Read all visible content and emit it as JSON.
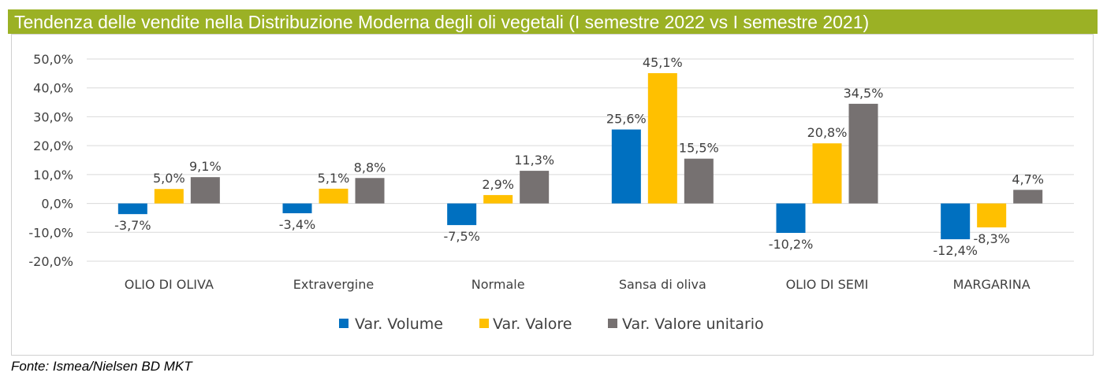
{
  "chart_data": {
    "type": "bar",
    "title": "Tendenza delle vendite nella Distribuzione Moderna degli oli vegetali (I semestre 2022 vs I semestre 2021)",
    "categories": [
      "OLIO DI OLIVA",
      "Extravergine",
      "Normale",
      "Sansa di oliva",
      "OLIO DI SEMI",
      "MARGARINA"
    ],
    "series": [
      {
        "name": "Var. Volume",
        "color": "#0070c0",
        "values": [
          -3.7,
          -3.4,
          -7.5,
          25.6,
          -10.2,
          -12.4
        ],
        "labels": [
          "-3,7%",
          "-3,4%",
          "-7,5%",
          "25,6%",
          "-10,2%",
          "-12,4%"
        ]
      },
      {
        "name": "Var. Valore",
        "color": "#ffc000",
        "values": [
          5.0,
          5.1,
          2.9,
          45.1,
          20.8,
          -8.3
        ],
        "labels": [
          "5,0%",
          "5,1%",
          "2,9%",
          "45,1%",
          "20,8%",
          "-8,3%"
        ]
      },
      {
        "name": "Var. Valore unitario",
        "color": "#767171",
        "values": [
          9.1,
          8.8,
          11.3,
          15.5,
          34.5,
          4.7
        ],
        "labels": [
          "9,1%",
          "8,8%",
          "11,3%",
          "15,5%",
          "34,5%",
          "4,7%"
        ]
      }
    ],
    "ylim": [
      -20,
      50
    ],
    "yticks": [
      "-20,0%",
      "-10,0%",
      "0,0%",
      "10,0%",
      "20,0%",
      "30,0%",
      "40,0%",
      "50,0%"
    ],
    "grid": true,
    "legend_position": "bottom"
  },
  "source": "Fonte: Ismea/Nielsen BD MKT"
}
